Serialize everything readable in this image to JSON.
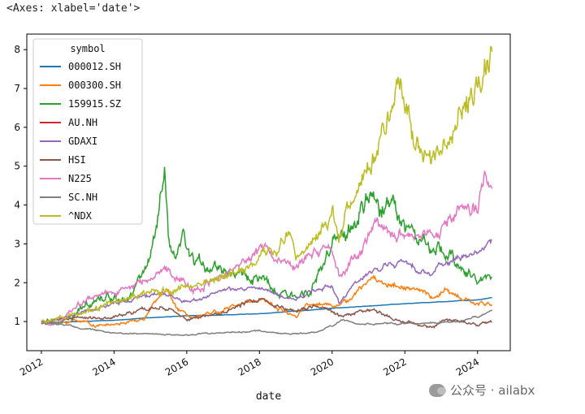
{
  "output": {
    "repr_text": "<Axes: xlabel='date'>"
  },
  "watermark": {
    "text": "公众号 · ailabx",
    "icon": "wechat-icon"
  },
  "chart_data": {
    "type": "line",
    "title": "",
    "xlabel": "date",
    "ylabel": "",
    "xlim": [
      2011.6,
      2024.9
    ],
    "ylim": [
      0.25,
      8.4
    ],
    "grid": false,
    "legend": {
      "title": "symbol",
      "placement": "top-left"
    },
    "x_ticks": [
      2012,
      2014,
      2016,
      2018,
      2020,
      2022,
      2024
    ],
    "x_tick_labels": [
      "2012",
      "2014",
      "2016",
      "2018",
      "2020",
      "2022",
      "2024"
    ],
    "y_ticks": [
      1,
      2,
      3,
      4,
      5,
      6,
      7,
      8
    ],
    "y_tick_labels": [
      "1",
      "2",
      "3",
      "4",
      "5",
      "6",
      "7",
      "8"
    ],
    "series": [
      {
        "name": "000012.SH",
        "color": "#1f77b4",
        "noise": 0.003,
        "x": [
          2012.0,
          2013.0,
          2014.0,
          2015.0,
          2016.0,
          2017.0,
          2018.0,
          2019.0,
          2020.0,
          2021.0,
          2022.0,
          2023.0,
          2024.0,
          2024.4
        ],
        "y": [
          0.97,
          1.0,
          1.03,
          1.1,
          1.15,
          1.17,
          1.2,
          1.27,
          1.34,
          1.4,
          1.46,
          1.51,
          1.56,
          1.62
        ]
      },
      {
        "name": "000300.SH",
        "color": "#ff7f0e",
        "noise": 0.04,
        "x": [
          2012.0,
          2012.5,
          2013.0,
          2013.5,
          2014.0,
          2014.8,
          2015.2,
          2015.45,
          2015.7,
          2016.0,
          2016.5,
          2017.0,
          2017.5,
          2018.0,
          2018.5,
          2019.0,
          2019.3,
          2020.0,
          2020.4,
          2020.8,
          2021.1,
          2021.5,
          2022.0,
          2022.5,
          2022.8,
          2023.1,
          2023.5,
          2024.0,
          2024.4
        ],
        "y": [
          0.98,
          0.95,
          1.05,
          0.9,
          0.92,
          1.05,
          1.55,
          1.9,
          1.35,
          1.15,
          1.2,
          1.3,
          1.45,
          1.6,
          1.35,
          1.15,
          1.45,
          1.45,
          1.5,
          1.85,
          2.15,
          1.95,
          1.9,
          1.75,
          1.6,
          1.8,
          1.6,
          1.45,
          1.45
        ]
      },
      {
        "name": "159915.SZ",
        "color": "#2ca02c",
        "noise": 0.07,
        "x": [
          2012.0,
          2012.5,
          2013.0,
          2013.5,
          2014.0,
          2014.5,
          2015.0,
          2015.2,
          2015.4,
          2015.5,
          2015.7,
          2015.9,
          2016.0,
          2016.2,
          2016.5,
          2017.0,
          2017.5,
          2018.0,
          2018.5,
          2019.0,
          2019.5,
          2020.0,
          2020.3,
          2020.7,
          2021.0,
          2021.3,
          2021.7,
          2022.0,
          2022.5,
          2022.8,
          2023.0,
          2023.5,
          2024.0,
          2024.4
        ],
        "y": [
          1.0,
          0.95,
          1.2,
          1.65,
          1.6,
          1.75,
          2.6,
          3.5,
          4.7,
          3.0,
          2.4,
          3.3,
          2.7,
          2.5,
          2.5,
          2.4,
          2.2,
          2.1,
          1.7,
          1.6,
          2.0,
          2.9,
          3.2,
          3.6,
          4.2,
          3.8,
          4.2,
          3.5,
          3.0,
          2.7,
          2.8,
          2.5,
          2.0,
          2.25
        ]
      },
      {
        "name": "AU.NH",
        "color": "#d62728",
        "noise": 0.0,
        "x": [],
        "y": []
      },
      {
        "name": "GDAXI",
        "color": "#9467bd",
        "noise": 0.03,
        "x": [
          2012.0,
          2013.0,
          2014.0,
          2015.3,
          2016.0,
          2017.0,
          2018.0,
          2018.9,
          2019.5,
          2020.0,
          2020.2,
          2020.6,
          2021.0,
          2021.5,
          2022.0,
          2022.7,
          2023.0,
          2023.5,
          2024.0,
          2024.4
        ],
        "y": [
          0.95,
          1.2,
          1.45,
          1.75,
          1.5,
          1.8,
          1.85,
          1.55,
          1.8,
          1.95,
          1.45,
          1.95,
          2.2,
          2.5,
          2.5,
          2.2,
          2.5,
          2.65,
          2.75,
          3.1
        ]
      },
      {
        "name": "HSI",
        "color": "#8c564b",
        "noise": 0.04,
        "x": [
          2012.0,
          2013.0,
          2014.0,
          2015.3,
          2016.0,
          2017.0,
          2018.0,
          2018.8,
          2019.5,
          2020.2,
          2021.0,
          2021.5,
          2022.0,
          2022.8,
          2023.1,
          2024.0,
          2024.4
        ],
        "y": [
          0.95,
          1.1,
          1.1,
          1.4,
          1.05,
          1.25,
          1.6,
          1.3,
          1.4,
          1.15,
          1.3,
          1.15,
          1.0,
          0.85,
          1.05,
          0.95,
          1.0
        ]
      },
      {
        "name": "N225",
        "color": "#e377c2",
        "noise": 0.05,
        "x": [
          2012.0,
          2012.5,
          2013.0,
          2013.5,
          2014.0,
          2015.0,
          2015.5,
          2016.2,
          2016.8,
          2017.5,
          2018.0,
          2018.9,
          2019.5,
          2020.0,
          2020.2,
          2020.8,
          2021.2,
          2021.5,
          2022.0,
          2022.5,
          2023.0,
          2023.5,
          2024.0,
          2024.2,
          2024.4
        ],
        "y": [
          0.95,
          0.95,
          1.45,
          1.65,
          1.75,
          2.1,
          2.4,
          1.8,
          2.1,
          2.6,
          2.9,
          2.4,
          2.8,
          2.75,
          2.1,
          2.8,
          3.5,
          3.3,
          3.1,
          3.2,
          3.3,
          3.8,
          3.9,
          4.8,
          4.55
        ]
      },
      {
        "name": "SC.NH",
        "color": "#7f7f7f",
        "noise": 0.025,
        "x": [
          2012.0,
          2013.0,
          2014.0,
          2015.0,
          2016.0,
          2016.5,
          2017.0,
          2018.0,
          2018.8,
          2019.5,
          2020.0,
          2020.3,
          2020.7,
          2021.0,
          2022.0,
          2022.5,
          2023.0,
          2023.5,
          2024.0,
          2024.4
        ],
        "y": [
          1.0,
          0.85,
          0.7,
          0.68,
          0.65,
          0.7,
          0.72,
          0.75,
          0.68,
          0.72,
          0.9,
          1.05,
          0.92,
          0.95,
          0.95,
          0.95,
          0.98,
          1.0,
          1.1,
          1.3
        ]
      },
      {
        "name": "^NDX",
        "color": "#bcbd22",
        "noise": 0.06,
        "x": [
          2012.0,
          2013.0,
          2014.0,
          2015.0,
          2016.0,
          2017.0,
          2018.0,
          2018.8,
          2019.0,
          2019.5,
          2020.0,
          2020.2,
          2020.6,
          2021.0,
          2021.5,
          2021.9,
          2022.3,
          2022.8,
          2023.0,
          2023.5,
          2024.0,
          2024.4
        ],
        "y": [
          1.0,
          1.15,
          1.5,
          1.75,
          1.85,
          2.1,
          2.7,
          3.2,
          2.6,
          3.2,
          3.8,
          3.1,
          4.5,
          5.1,
          6.0,
          7.0,
          5.5,
          5.0,
          5.3,
          6.3,
          7.3,
          8.1
        ]
      }
    ]
  }
}
